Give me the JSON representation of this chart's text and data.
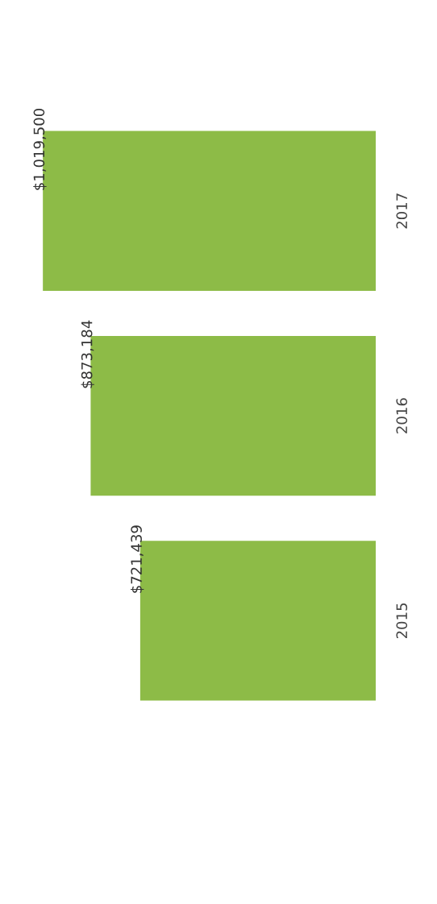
{
  "chart_data": {
    "type": "bar",
    "orientation": "horizontal",
    "categories": [
      "2017",
      "2016",
      "2015"
    ],
    "values": [
      1019500,
      873184,
      721439
    ],
    "value_labels": [
      "$1,019,500",
      "$873,184",
      "$721,439"
    ],
    "color": "#8dbb47",
    "grid": false,
    "legend": false,
    "tick_labels": "y"
  }
}
